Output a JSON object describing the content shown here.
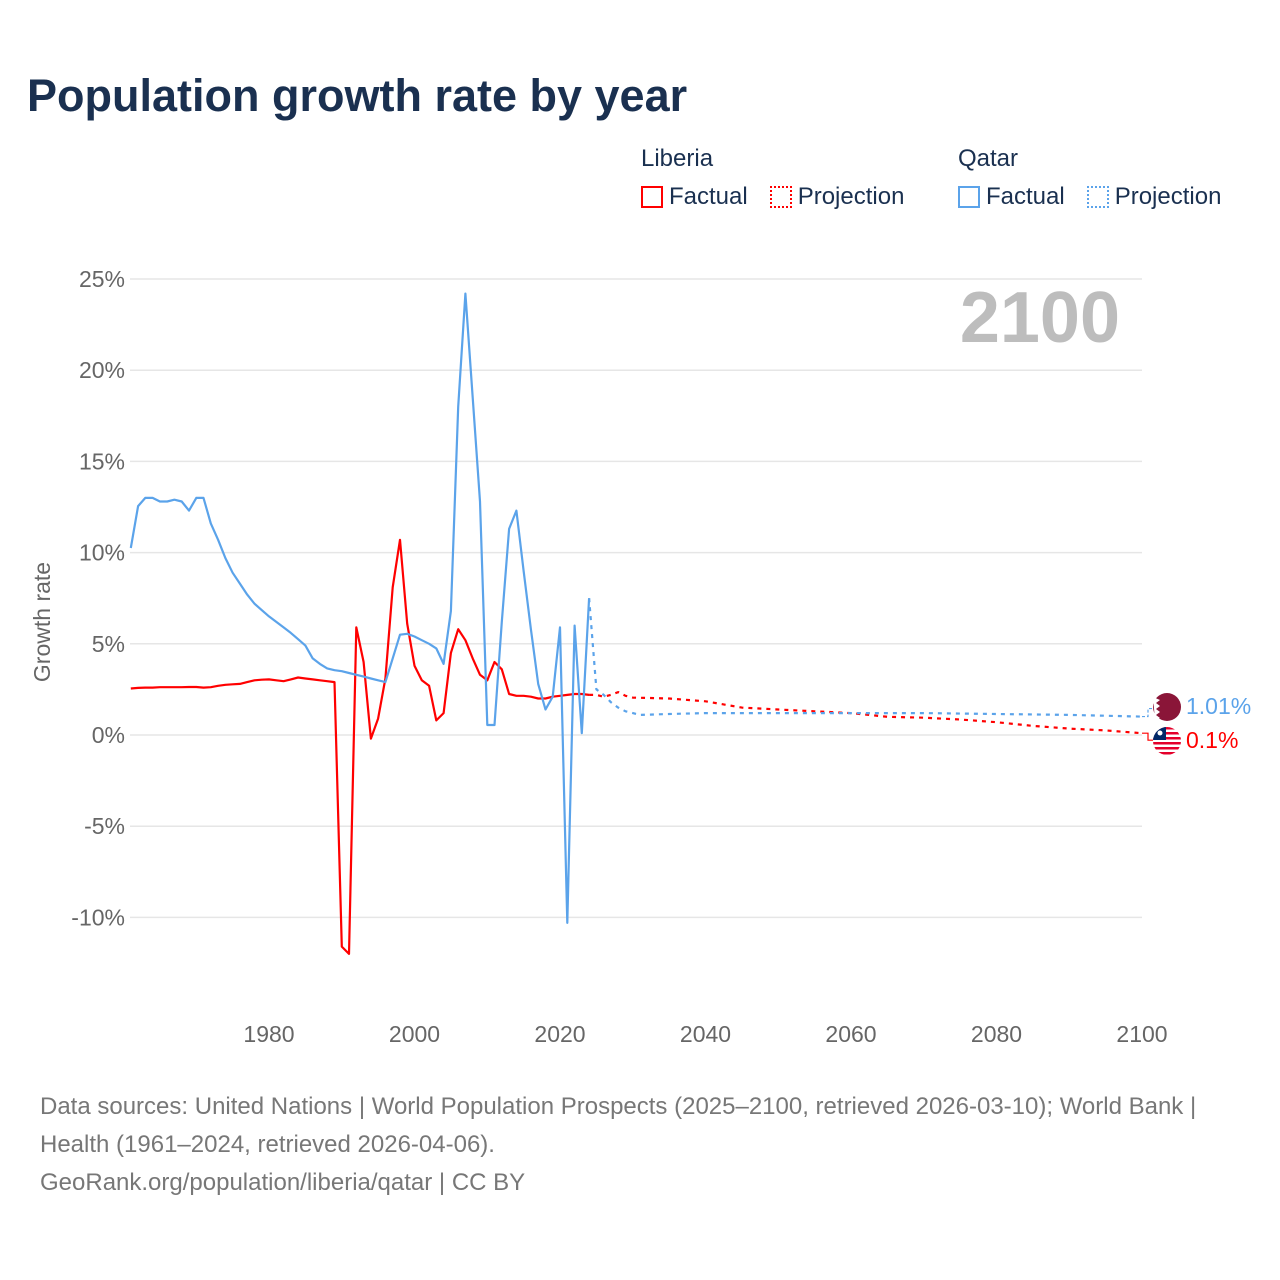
{
  "title": "Population growth rate by year",
  "legend": {
    "groups": [
      {
        "country": "Liberia",
        "factual": "Factual",
        "projection": "Projection",
        "color": "#ff0000"
      },
      {
        "country": "Qatar",
        "factual": "Factual",
        "projection": "Projection",
        "color": "#5ba3ea"
      }
    ]
  },
  "year_watermark": "2100",
  "footer": {
    "sources": "Data sources: United Nations | World Population Prospects (2025–2100, retrieved 2026-03-10); World Bank | Health (1961–2024, retrieved 2026-04-06).",
    "credit": "GeoRank.org/population/liberia/qatar | CC BY"
  },
  "chart_data": {
    "type": "line",
    "title": "Population growth rate by year",
    "ylabel": "Growth rate",
    "xlabel": "",
    "xlim": [
      1961,
      2100
    ],
    "ylim": [
      -13,
      27
    ],
    "x_ticks": [
      1980,
      2000,
      2020,
      2040,
      2060,
      2080,
      2100
    ],
    "y_ticks": [
      -10,
      -5,
      0,
      5,
      10,
      15,
      20,
      25
    ],
    "y_tick_labels": [
      "-10%",
      "-5%",
      "0%",
      "5%",
      "10%",
      "15%",
      "20%",
      "25%"
    ],
    "grid": true,
    "legend_position": "top-right",
    "end_labels": {
      "Qatar": "1.01%",
      "Liberia": "0.1%"
    },
    "series": [
      {
        "name": "Liberia",
        "kind": "factual",
        "color": "#ff0000",
        "x": [
          1961,
          1962,
          1963,
          1964,
          1965,
          1966,
          1967,
          1968,
          1969,
          1970,
          1971,
          1972,
          1973,
          1974,
          1975,
          1976,
          1977,
          1978,
          1979,
          1980,
          1981,
          1982,
          1983,
          1984,
          1985,
          1986,
          1987,
          1988,
          1989,
          1990,
          1991,
          1992,
          1993,
          1994,
          1995,
          1996,
          1997,
          1998,
          1999,
          2000,
          2001,
          2002,
          2003,
          2004,
          2005,
          2006,
          2007,
          2008,
          2009,
          2010,
          2011,
          2012,
          2013,
          2014,
          2015,
          2016,
          2017,
          2018,
          2019,
          2020,
          2021,
          2022,
          2023,
          2024
        ],
        "y": [
          2.55,
          2.58,
          2.6,
          2.6,
          2.62,
          2.62,
          2.62,
          2.62,
          2.63,
          2.63,
          2.6,
          2.62,
          2.7,
          2.75,
          2.78,
          2.8,
          2.9,
          3.0,
          3.03,
          3.05,
          3.0,
          2.95,
          3.05,
          3.15,
          3.1,
          3.05,
          3.0,
          2.95,
          2.9,
          -11.6,
          -12.0,
          5.9,
          4.0,
          -0.2,
          0.9,
          3.1,
          8.1,
          10.7,
          6.1,
          3.8,
          3.0,
          2.7,
          0.8,
          1.2,
          4.5,
          5.8,
          5.2,
          4.2,
          3.3,
          3.0,
          4.0,
          3.6,
          2.25,
          2.15,
          2.15,
          2.1,
          2.0,
          2.0,
          2.1,
          2.15,
          2.2,
          2.25,
          2.25,
          2.2
        ]
      },
      {
        "name": "Liberia",
        "kind": "projection",
        "color": "#ff0000",
        "x": [
          2024,
          2025,
          2026,
          2027,
          2028,
          2029,
          2030,
          2035,
          2040,
          2045,
          2050,
          2055,
          2060,
          2065,
          2070,
          2075,
          2080,
          2085,
          2090,
          2095,
          2100
        ],
        "y": [
          2.2,
          2.2,
          2.1,
          2.2,
          2.35,
          2.15,
          2.05,
          2.0,
          1.85,
          1.5,
          1.4,
          1.3,
          1.2,
          1.0,
          0.95,
          0.85,
          0.7,
          0.5,
          0.35,
          0.25,
          0.1
        ]
      },
      {
        "name": "Qatar",
        "kind": "factual",
        "color": "#5ba3ea",
        "x": [
          1961,
          1962,
          1963,
          1964,
          1965,
          1966,
          1967,
          1968,
          1969,
          1970,
          1971,
          1972,
          1973,
          1974,
          1975,
          1976,
          1977,
          1978,
          1979,
          1980,
          1981,
          1982,
          1983,
          1984,
          1985,
          1986,
          1987,
          1988,
          1989,
          1990,
          1991,
          1992,
          1993,
          1994,
          1995,
          1996,
          1997,
          1998,
          1999,
          2000,
          2001,
          2002,
          2003,
          2004,
          2005,
          2006,
          2007,
          2008,
          2009,
          2010,
          2011,
          2012,
          2013,
          2014,
          2015,
          2016,
          2017,
          2018,
          2019,
          2020,
          2021,
          2022,
          2023,
          2024
        ],
        "y": [
          10.25,
          12.55,
          13.0,
          13.0,
          12.8,
          12.8,
          12.9,
          12.8,
          12.3,
          13.0,
          13.0,
          11.6,
          10.7,
          9.7,
          8.9,
          8.3,
          7.7,
          7.2,
          6.85,
          6.5,
          6.2,
          5.9,
          5.6,
          5.25,
          4.9,
          4.2,
          3.9,
          3.65,
          3.55,
          3.5,
          3.4,
          3.3,
          3.2,
          3.1,
          3.0,
          2.9,
          4.2,
          5.5,
          5.55,
          5.4,
          5.2,
          5.0,
          4.75,
          3.9,
          6.8,
          18.0,
          24.2,
          18.5,
          12.8,
          0.55,
          0.55,
          6.2,
          11.3,
          12.3,
          9.0,
          5.8,
          2.8,
          1.4,
          2.1,
          5.9,
          -10.3,
          6.0,
          0.1,
          7.5
        ]
      },
      {
        "name": "Qatar",
        "kind": "projection",
        "color": "#5ba3ea",
        "x": [
          2024,
          2025,
          2026,
          2027,
          2028,
          2029,
          2030,
          2031,
          2035,
          2040,
          2045,
          2050,
          2055,
          2060,
          2070,
          2080,
          2090,
          2100
        ],
        "y": [
          7.5,
          2.5,
          2.2,
          1.8,
          1.5,
          1.3,
          1.2,
          1.1,
          1.15,
          1.2,
          1.2,
          1.2,
          1.2,
          1.2,
          1.2,
          1.15,
          1.1,
          1.01
        ]
      }
    ]
  }
}
